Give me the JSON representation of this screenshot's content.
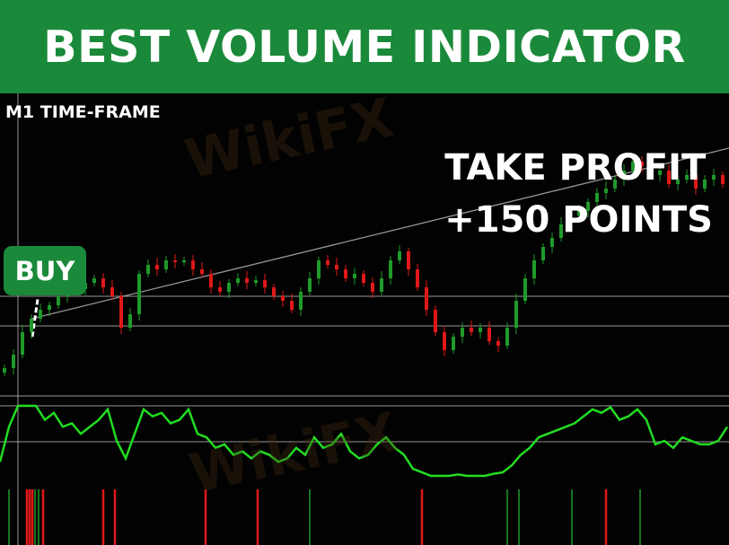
{
  "banner": {
    "title": "BEST VOLUME INDICATOR"
  },
  "labels": {
    "timeframe": "M1 TIME-FRAME",
    "take_profit_line1": "TAKE PROFIT",
    "take_profit_line2": "+150 POINTS",
    "buy": "BUY"
  },
  "watermark": "WikiFX",
  "colors": {
    "banner": "#1a8a3a",
    "bull": "#1f9a2a",
    "bear": "#e01818",
    "oscillator": "#22dd22",
    "lines": "#bbbbbb"
  },
  "chart_data": [
    {
      "type": "candlestick",
      "title": "",
      "grid": false,
      "close": [
        30,
        45,
        70,
        85,
        95,
        100,
        110,
        115,
        118,
        125,
        130,
        120,
        110,
        75,
        90,
        135,
        145,
        140,
        150,
        148,
        150,
        140,
        135,
        120,
        115,
        125,
        130,
        125,
        128,
        120,
        110,
        105,
        95,
        115,
        130,
        150,
        145,
        140,
        130,
        135,
        125,
        115,
        130,
        150,
        160,
        140,
        120,
        95,
        70,
        50,
        65,
        75,
        70,
        75,
        60,
        55,
        75,
        105,
        130,
        150,
        165,
        175,
        190,
        200,
        205,
        215,
        225,
        230,
        240,
        250,
        260,
        255,
        245,
        250,
        235,
        240,
        245,
        230,
        240,
        245,
        235,
        225
      ]
    },
    {
      "type": "line",
      "title": "",
      "ylim": [
        0,
        100
      ],
      "values": [
        20,
        70,
        100,
        100,
        100,
        80,
        90,
        70,
        75,
        60,
        70,
        80,
        95,
        50,
        25,
        60,
        95,
        85,
        90,
        75,
        80,
        95,
        60,
        55,
        40,
        45,
        30,
        35,
        25,
        35,
        30,
        20,
        25,
        40,
        30,
        55,
        40,
        45,
        60,
        35,
        25,
        30,
        45,
        55,
        40,
        30,
        10,
        5,
        0,
        0,
        0,
        2,
        0,
        0,
        0,
        3,
        5,
        15,
        30,
        40,
        55,
        60,
        65,
        70,
        75,
        85,
        95,
        90,
        98,
        80,
        85,
        95,
        80,
        45,
        50,
        40,
        55,
        50,
        45,
        45,
        50,
        70
      ]
    },
    {
      "type": "bar",
      "title": "",
      "signals": [
        {
          "index": 1,
          "dir": "buy"
        },
        {
          "index": 3,
          "dir": "sell"
        },
        {
          "index": 3.3,
          "dir": "sell"
        },
        {
          "index": 3.6,
          "dir": "sell"
        },
        {
          "index": 3.9,
          "dir": "buy"
        },
        {
          "index": 4.3,
          "dir": "buy"
        },
        {
          "index": 4.8,
          "dir": "sell"
        },
        {
          "index": 11.5,
          "dir": "sell"
        },
        {
          "index": 12.8,
          "dir": "sell"
        },
        {
          "index": 22.9,
          "dir": "sell"
        },
        {
          "index": 28.7,
          "dir": "sell"
        },
        {
          "index": 34.5,
          "dir": "buy"
        },
        {
          "index": 47,
          "dir": "sell"
        },
        {
          "index": 56.5,
          "dir": "buy"
        },
        {
          "index": 57.8,
          "dir": "buy"
        },
        {
          "index": 63.7,
          "dir": "buy"
        },
        {
          "index": 67.5,
          "dir": "sell"
        },
        {
          "index": 71.3,
          "dir": "buy"
        }
      ]
    }
  ]
}
